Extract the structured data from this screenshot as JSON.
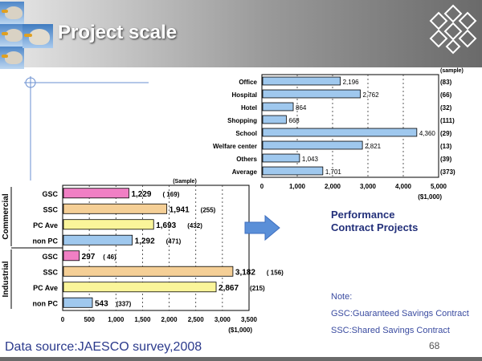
{
  "slide": {
    "title": "Project scale",
    "performance_line1": "Performance",
    "performance_line2": "Contract Projects",
    "note_title": "Note:",
    "note_gsc": "GSC:Guaranteed Savings Contract",
    "note_ssc": "SSC:Shared Savings Contract",
    "data_source": "Data source:JAESCO survey,2008",
    "page_number": "68"
  },
  "colors": {
    "blue_bar": "#9fc8ee",
    "pink_bar": "#f07fc4",
    "yellow_bar": "#faf59a",
    "ssc_bar": "#f5cf96",
    "accent_text": "#23307a",
    "arrow": "#5a8fd8"
  },
  "chart_data": [
    {
      "type": "bar",
      "orientation": "horizontal",
      "categories": [
        "Office",
        "Hospital",
        "Hotel",
        "Shopping",
        "School",
        "Welfare center",
        "Others",
        "Average"
      ],
      "values": [
        2196,
        2762,
        864,
        668,
        4360,
        2821,
        1043,
        1701
      ],
      "value_labels": [
        "2,196",
        "2,762",
        "864",
        "668",
        "4,360",
        "2,821",
        "1,043",
        "1,701"
      ],
      "samples": [
        "(83)",
        "(66)",
        "(32)",
        "(111)",
        "(29)",
        "(13)",
        "(39)",
        "(373)"
      ],
      "sample_header": "(sample)",
      "xlim": [
        0,
        5000
      ],
      "xticks": [
        "0",
        "1,000",
        "2,000",
        "3,000",
        "4,000",
        "5,000"
      ],
      "xunit": "($1,000)",
      "grid": true
    },
    {
      "type": "bar",
      "orientation": "horizontal",
      "groups": [
        {
          "name": "Commercial",
          "rows": [
            0,
            1,
            2,
            3
          ]
        },
        {
          "name": "Industrial",
          "rows": [
            4,
            5,
            6,
            7
          ]
        }
      ],
      "categories": [
        "GSC",
        "SSC",
        "PC Ave",
        "non PC",
        "GSC",
        "SSC",
        "PC Ave",
        "non PC"
      ],
      "values": [
        1229,
        1941,
        1693,
        1292,
        297,
        3182,
        2867,
        543
      ],
      "value_labels": [
        "1,229",
        "1,941",
        "1,693",
        "1,292",
        "297",
        "3,182",
        "2,867",
        "543"
      ],
      "samples": [
        "( 169)",
        "(255)",
        "(432)",
        "(471)",
        "( 46)",
        "( 156)",
        "(215)",
        "(337)"
      ],
      "bar_colors": [
        "#f07fc4",
        "#f5cf96",
        "#faf59a",
        "#9fc8ee",
        "#f07fc4",
        "#f5cf96",
        "#faf59a",
        "#9fc8ee"
      ],
      "sample_header": "(Sample)",
      "xlim": [
        0,
        3500
      ],
      "xticks": [
        "0",
        "500",
        "1,000",
        "1,500",
        "2,000",
        "2,500",
        "3,000",
        "3,500"
      ],
      "xunit": "($1,000)",
      "grid": true
    }
  ]
}
